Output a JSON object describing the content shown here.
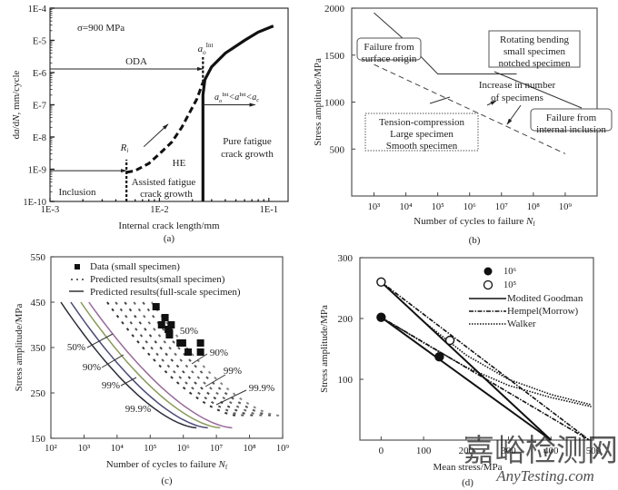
{
  "chart_data": [
    {
      "id": "a",
      "type": "line",
      "panel_label": "(a)",
      "title": "",
      "annotation_stress": "σ=900 MPa",
      "xlabel": "Internal crack length/mm",
      "ylabel": "da/dN, mm/cycle",
      "xscale": "log",
      "yscale": "log",
      "xlim": [
        0.001,
        0.15
      ],
      "ylim": [
        1e-10,
        0.0001
      ],
      "xticks": [
        "1E-3",
        "1E-2",
        "1E-1"
      ],
      "yticks": [
        "1E-10",
        "1E-9",
        "E-8",
        "E-7",
        "E-6",
        "E-5",
        "1E-4"
      ],
      "series": [
        {
          "name": "HE assisted growth (dashed)",
          "style": "dashed",
          "x": [
            0.005,
            0.006,
            0.008,
            0.01,
            0.013,
            0.016,
            0.019,
            0.022,
            0.025
          ],
          "y": [
            8e-10,
            9e-10,
            1.5e-09,
            3e-09,
            7e-09,
            2e-08,
            6e-08,
            1.5e-07,
            5e-07
          ]
        },
        {
          "name": "Pure fatigue crack growth (solid)",
          "style": "solid",
          "x": [
            0.025,
            0.025,
            0.026,
            0.03,
            0.04,
            0.06,
            0.08,
            0.11
          ],
          "y": [
            1e-10,
            2e-07,
            6e-07,
            1.5e-06,
            4e-06,
            1e-05,
            1.8e-05,
            2.8e-05
          ]
        }
      ],
      "vlines": [
        {
          "name": "R_i",
          "x": 0.005,
          "y_from": 1e-10,
          "y_to": 2e-09,
          "style": "dashed"
        },
        {
          "name": "a_o^Int",
          "x": 0.025,
          "y_from": 5e-07,
          "y_to": 3e-06,
          "style": "dashed"
        }
      ],
      "arrows": [
        {
          "label": "ODA",
          "x_from": 0.001,
          "x_to": 0.025,
          "y": 1.3e-06
        },
        {
          "label": "",
          "x_from": 0.001,
          "x_to": 0.005,
          "y": 9e-10
        },
        {
          "label": "a_o^Int<a^Int<a_c",
          "x_from": 0.025,
          "x_to": 0.075,
          "y": 1e-07
        },
        {
          "label": "",
          "x_from": 0.0072,
          "x_to": 0.012,
          "y_from": 5e-09,
          "y_to": 2.5e-08
        }
      ],
      "annotations": [
        "Inclusion",
        "HE",
        "Assisted fatigue",
        "crack growth",
        "Pure fatigue",
        "crack growth",
        "R_i",
        "a_o^Int"
      ]
    },
    {
      "id": "b",
      "type": "line",
      "panel_label": "(b)",
      "xlabel": "Number of cycles to failure N_f",
      "ylabel": "Stress amplitude/MPa",
      "xscale": "log",
      "xlim": [
        200,
        10000000000.0
      ],
      "ylim": [
        0,
        2000
      ],
      "xticks": [
        "10³",
        "10⁴",
        "10⁵",
        "10⁶",
        "10⁷",
        "10⁸",
        "10⁹"
      ],
      "yticks": [
        500,
        1000,
        1500,
        2000
      ],
      "series": [
        {
          "name": "Failure from surface origin",
          "style": "solid",
          "x": [
            1000,
            10000,
            100000,
            30000000
          ],
          "y": [
            1950,
            1650,
            1300,
            1300
          ]
        },
        {
          "name": "Failure from internal inclusion",
          "style": "dashed",
          "x": [
            1000,
            1000000000
          ],
          "y": [
            1400,
            450
          ]
        }
      ],
      "boxes": [
        {
          "lines": [
            "Failure from",
            "surface origin"
          ],
          "style": "rounded"
        },
        {
          "lines": [
            "Rotating bending",
            "small specimen",
            "notched specimen"
          ],
          "style": "square"
        },
        {
          "lines": [
            "Tension-compression",
            "Large specimen",
            "Smooth specimen"
          ],
          "style": "dotted"
        },
        {
          "lines": [
            "Failure from",
            "internal inclusion"
          ],
          "style": "rounded"
        }
      ],
      "annotations": [
        "Increase in number",
        "of specimens"
      ]
    },
    {
      "id": "c",
      "type": "line",
      "panel_label": "(c)",
      "xlabel": "Number of cycles to failure N_f",
      "ylabel": "Stress amplitude/MPa",
      "xscale": "log",
      "xlim": [
        100,
        1000000000.0
      ],
      "ylim": [
        150,
        550
      ],
      "xticks": [
        "10²",
        "10³",
        "10⁴",
        "10⁵",
        "10⁶",
        "10⁷",
        "10⁸",
        "10⁹"
      ],
      "yticks": [
        150,
        250,
        350,
        450,
        550
      ],
      "legend": {
        "position": "top-left",
        "entries": [
          "Data (small specimen)",
          "Predicted results(small specimen)",
          "Predicted results(full-scale specimen)"
        ]
      },
      "scatter": {
        "name": "Data (small specimen)",
        "x": [
          150000,
          280000,
          220000,
          350000,
          430000,
          380000,
          380000,
          800000,
          950000,
          1400000,
          3300000,
          3300000
        ],
        "y": [
          440,
          416,
          400,
          390,
          400,
          383,
          378,
          360,
          360,
          340,
          360,
          340
        ]
      },
      "series": [
        {
          "name": "Full-scale 99.9%",
          "style": "solid",
          "color": "#2d2d3a",
          "x0": 200,
          "x1": 2500000,
          "y0": 450,
          "y1": 173
        },
        {
          "name": "Full-scale 99%",
          "style": "solid",
          "color": "#4a4a78",
          "x0": 400,
          "x1": 5500000,
          "y0": 450,
          "y1": 173
        },
        {
          "name": "Full-scale 90%",
          "style": "solid",
          "color": "#8a9a5a",
          "x0": 800,
          "x1": 13000000,
          "y0": 450,
          "y1": 173
        },
        {
          "name": "Full-scale 50%",
          "style": "solid",
          "color": "#9a6a9a",
          "x0": 1400,
          "x1": 30000000,
          "y0": 450,
          "y1": 173
        },
        {
          "name": "Small 99.9% (a)",
          "style": "dashed",
          "color": "#333333",
          "x0": 5000,
          "x1": 45000000,
          "y0": 450,
          "y1": 200
        },
        {
          "name": "Small 99.9% (b)",
          "style": "dashed",
          "color": "#555555",
          "x0": 9000,
          "x1": 80000000,
          "y0": 450,
          "y1": 200
        },
        {
          "name": "Small 99%",
          "style": "dashed",
          "color": "#444444",
          "x0": 17000,
          "x1": 150000000,
          "y0": 450,
          "y1": 200
        },
        {
          "name": "Small 90% (a)",
          "style": "dashed",
          "color": "#666666",
          "x0": 32000,
          "x1": 280000000,
          "y0": 450,
          "y1": 200
        },
        {
          "name": "Small 90% (b)",
          "style": "dashed",
          "color": "#555555",
          "x0": 60000,
          "x1": 500000000,
          "y0": 450,
          "y1": 200
        },
        {
          "name": "Small 50%",
          "style": "dashed",
          "color": "#888888",
          "x0": 110000,
          "x1": 800000000,
          "y0": 450,
          "y1": 200
        }
      ],
      "annotations": [
        "50%",
        "90%",
        "99%",
        "99.9%",
        "50%",
        "90%",
        "99%",
        "99.9%"
      ]
    },
    {
      "id": "d",
      "type": "line",
      "panel_label": "(d)",
      "xlabel": "Mean stress/MPa",
      "ylabel": "Stress amplitude/MPa",
      "xlim": [
        -50,
        500
      ],
      "ylim": [
        0,
        300
      ],
      "xticks": [
        0,
        100,
        200,
        300,
        400,
        500
      ],
      "yticks": [
        100,
        200,
        300
      ],
      "legend": {
        "position": "top-right",
        "entries": [
          "10⁶",
          "10⁵",
          "Modited Goodman",
          "Hempel(Morrow)",
          "Walker"
        ]
      },
      "scatter": [
        {
          "name": "10⁶",
          "marker": "filled-circle",
          "x": [
            0,
            137
          ],
          "y": [
            202,
            137
          ]
        },
        {
          "name": "10⁵",
          "marker": "open-circle",
          "x": [
            0,
            162
          ],
          "y": [
            260,
            164
          ]
        }
      ],
      "series": [
        {
          "name": "Modited Goodman (10⁶)",
          "style": "solid",
          "x": [
            0,
            400
          ],
          "y": [
            202,
            0
          ]
        },
        {
          "name": "Modited Goodman (10⁵)",
          "style": "solid",
          "x": [
            0,
            400
          ],
          "y": [
            260,
            0
          ]
        },
        {
          "name": "Hempel(Morrow) (10⁶)",
          "style": "dashdot",
          "x": [
            0,
            490
          ],
          "y": [
            202,
            0
          ]
        },
        {
          "name": "Hempel(Morrow) (10⁵)",
          "style": "dashdot",
          "x": [
            0,
            490
          ],
          "y": [
            260,
            0
          ]
        },
        {
          "name": "Walker (10⁶)",
          "style": "dotted",
          "x": [
            0,
            100,
            200,
            300,
            400,
            495
          ],
          "y": [
            202,
            160,
            120,
            90,
            70,
            55
          ]
        },
        {
          "name": "Walker (10⁵)",
          "style": "dotted",
          "x": [
            0,
            100,
            200,
            300,
            400,
            495
          ],
          "y": [
            260,
            195,
            140,
            100,
            75,
            58
          ]
        }
      ]
    }
  ],
  "watermark": {
    "line1": "嘉峪检测网",
    "line2": "AnyTesting.com"
  }
}
